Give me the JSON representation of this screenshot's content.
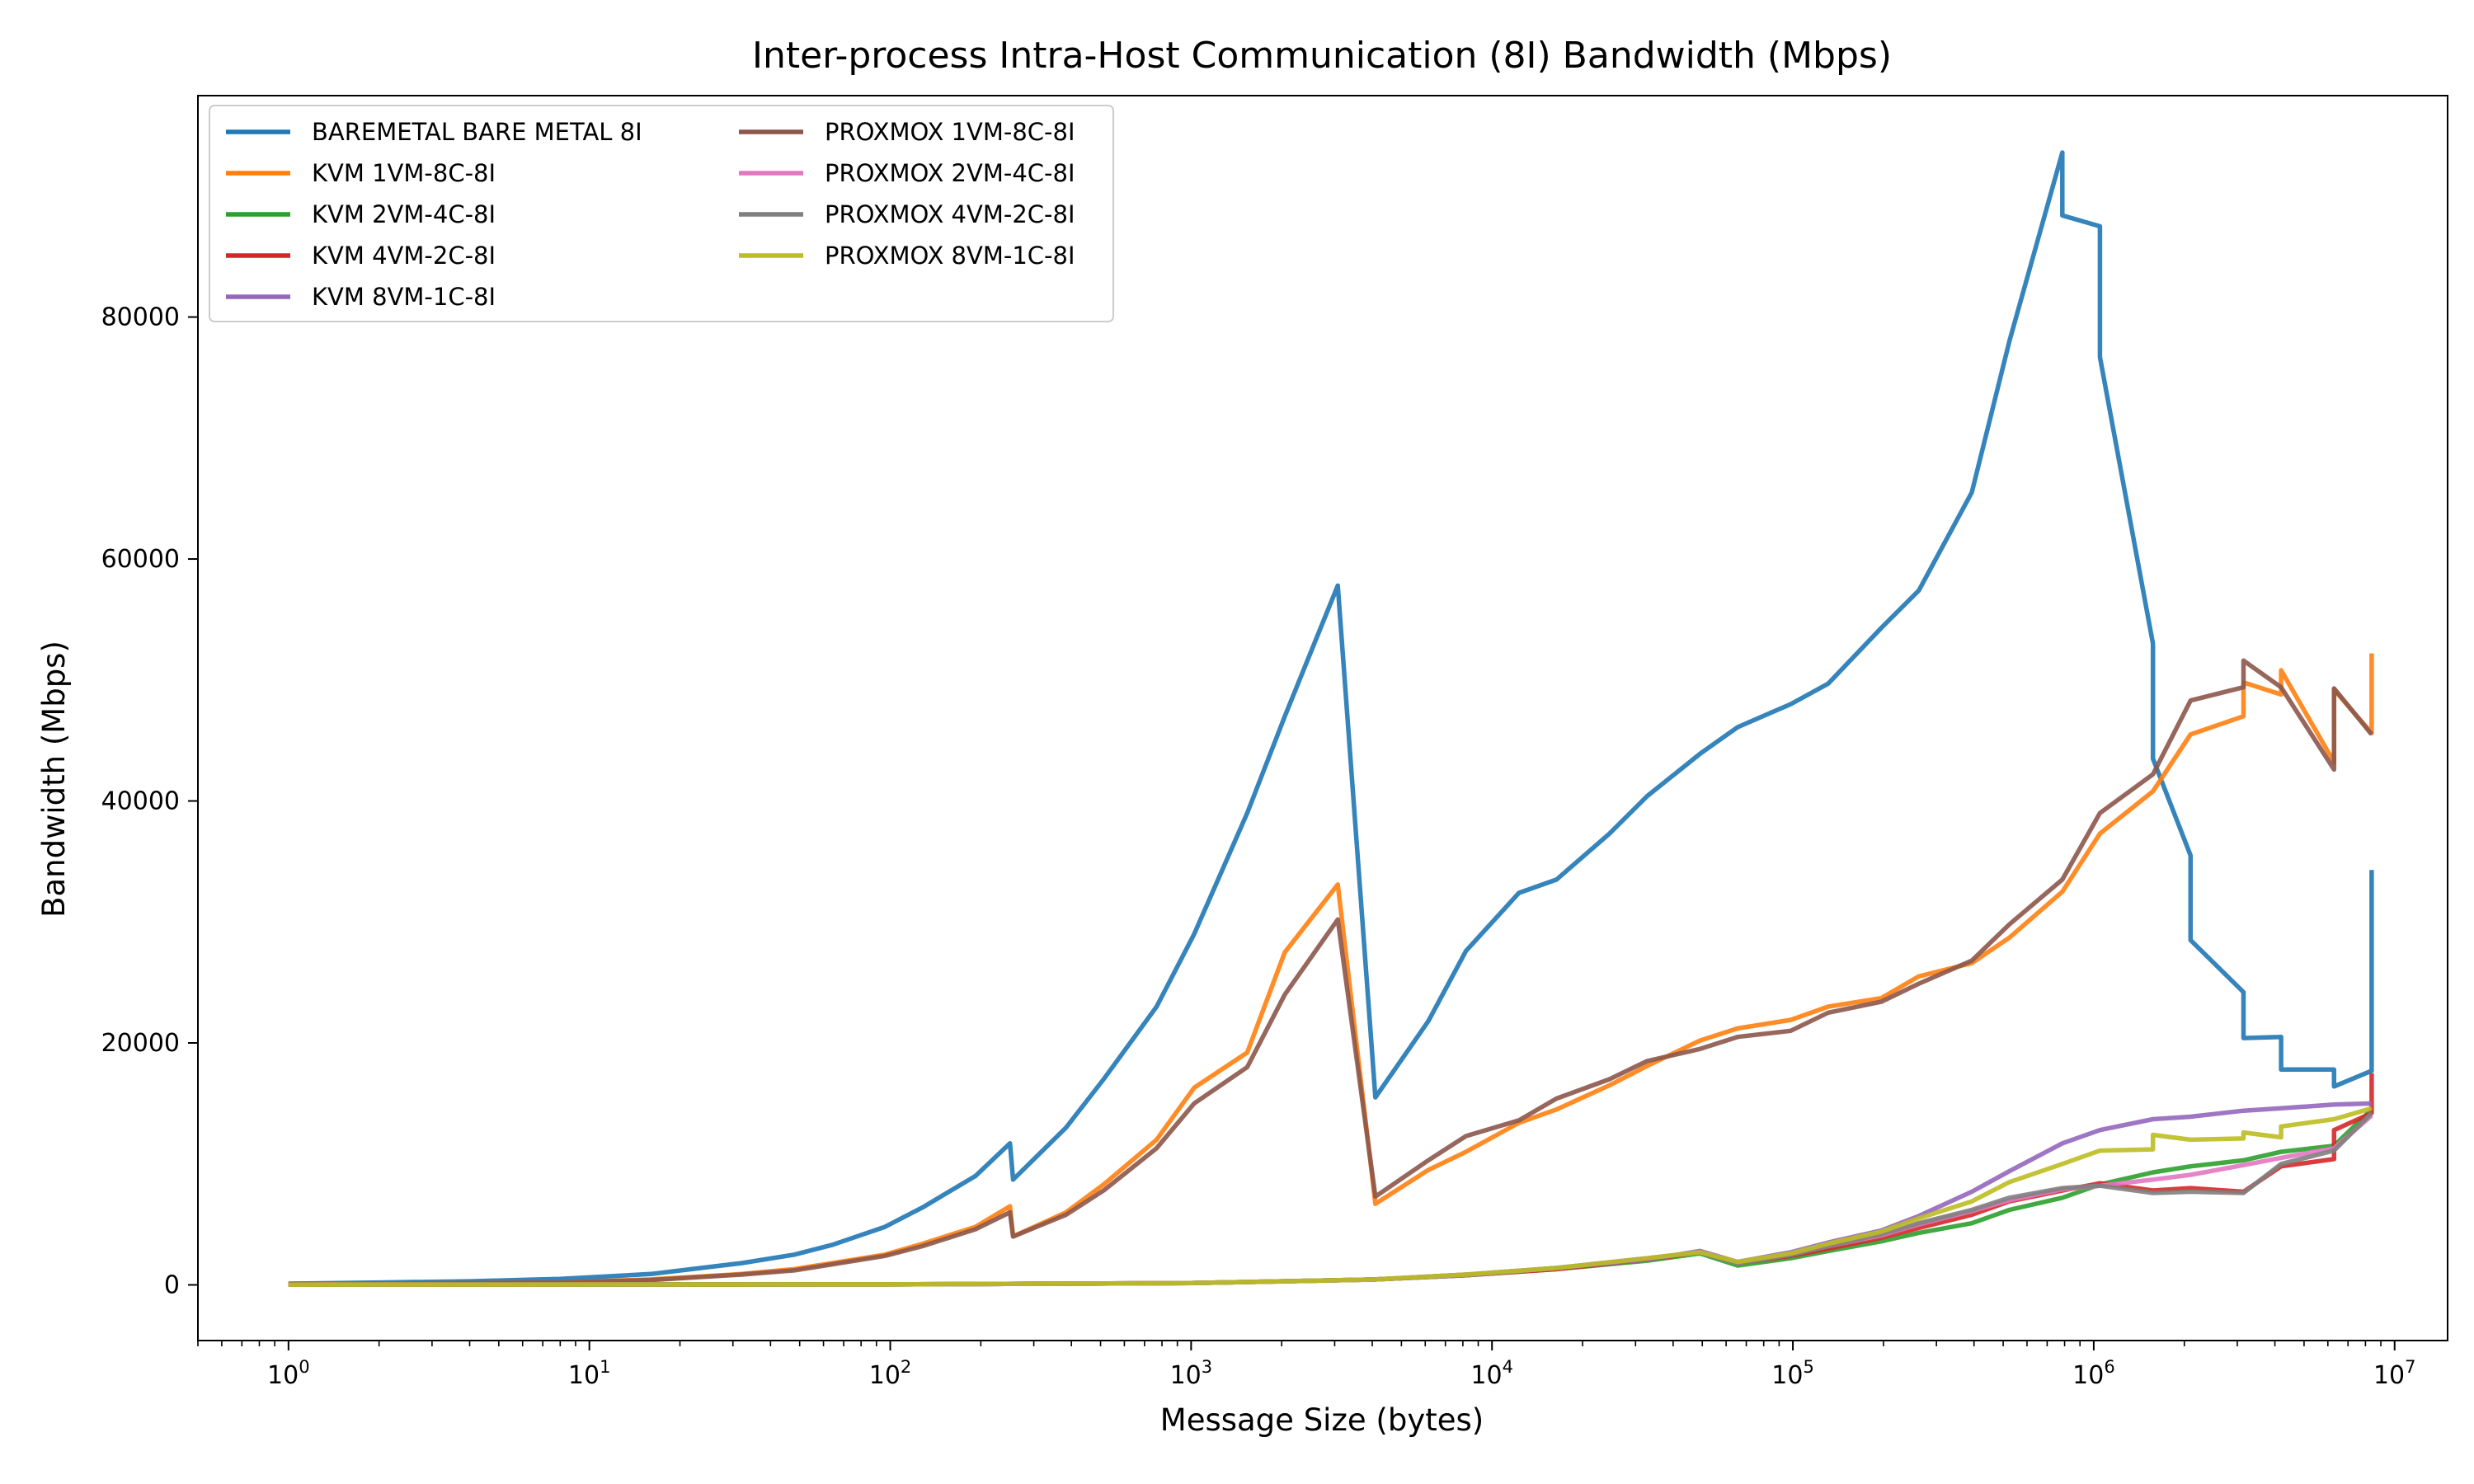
{
  "chart_data": {
    "type": "line",
    "title": "Inter-process Intra-Host Communication (8I) Bandwidth (Mbps)",
    "xlabel": "Message Size (bytes)",
    "ylabel": "Bandwidth (Mbps)",
    "xscale": "log",
    "xlim": [
      0.5,
      15000000
    ],
    "ylim": [
      -4600,
      98300
    ],
    "grid": false,
    "legend_position": "upper-left",
    "legend_columns": 2,
    "x_ticks": [
      {
        "value": 1,
        "base": "10",
        "exp": "0"
      },
      {
        "value": 10,
        "base": "10",
        "exp": "1"
      },
      {
        "value": 100,
        "base": "10",
        "exp": "2"
      },
      {
        "value": 1000,
        "base": "10",
        "exp": "3"
      },
      {
        "value": 10000,
        "base": "10",
        "exp": "4"
      },
      {
        "value": 100000,
        "base": "10",
        "exp": "5"
      },
      {
        "value": 1000000,
        "base": "10",
        "exp": "6"
      },
      {
        "value": 10000000,
        "base": "10",
        "exp": "7"
      }
    ],
    "y_ticks": [
      {
        "value": 0,
        "label": "0"
      },
      {
        "value": 20000,
        "label": "20000"
      },
      {
        "value": 40000,
        "label": "40000"
      },
      {
        "value": 60000,
        "label": "60000"
      },
      {
        "value": 80000,
        "label": "80000"
      }
    ],
    "series": [
      {
        "name": "BAREMETAL BARE METAL 8I",
        "color": "#1f77b4",
        "points": [
          [
            1,
            100
          ],
          [
            2,
            200
          ],
          [
            4,
            300
          ],
          [
            8,
            500
          ],
          [
            16,
            900
          ],
          [
            32,
            1800
          ],
          [
            48,
            2500
          ],
          [
            64,
            3300
          ],
          [
            96,
            4800
          ],
          [
            128,
            6400
          ],
          [
            192,
            9000
          ],
          [
            250,
            11700
          ],
          [
            256,
            8700
          ],
          [
            384,
            13000
          ],
          [
            512,
            17000
          ],
          [
            768,
            23000
          ],
          [
            1024,
            29000
          ],
          [
            1536,
            39000
          ],
          [
            2048,
            47000
          ],
          [
            3072,
            57800
          ],
          [
            4096,
            15500
          ],
          [
            6144,
            21800
          ],
          [
            8192,
            27600
          ],
          [
            12288,
            32400
          ],
          [
            16384,
            33500
          ],
          [
            24576,
            37300
          ],
          [
            32768,
            40400
          ],
          [
            49152,
            43900
          ],
          [
            65536,
            46100
          ],
          [
            98304,
            48000
          ],
          [
            131072,
            49700
          ],
          [
            196608,
            54300
          ],
          [
            262144,
            57400
          ],
          [
            393216,
            65500
          ],
          [
            524288,
            78000
          ],
          [
            786432,
            93600
          ],
          [
            786432,
            88400
          ],
          [
            1048576,
            87500
          ],
          [
            1048576,
            76700
          ],
          [
            1572864,
            53000
          ],
          [
            1572864,
            43500
          ],
          [
            2097152,
            35500
          ],
          [
            2097152,
            28500
          ],
          [
            3145728,
            24200
          ],
          [
            3145728,
            20400
          ],
          [
            4194304,
            20500
          ],
          [
            4194304,
            17800
          ],
          [
            6291456,
            17800
          ],
          [
            6291456,
            16400
          ],
          [
            8388608,
            17700
          ],
          [
            8388608,
            34300
          ]
        ]
      },
      {
        "name": "KVM 1VM-8C-8I",
        "color": "#ff7f0e",
        "points": [
          [
            1,
            50
          ],
          [
            8,
            200
          ],
          [
            16,
            450
          ],
          [
            32,
            900
          ],
          [
            48,
            1300
          ],
          [
            64,
            1800
          ],
          [
            96,
            2500
          ],
          [
            128,
            3400
          ],
          [
            192,
            4800
          ],
          [
            250,
            6500
          ],
          [
            256,
            4000
          ],
          [
            384,
            6000
          ],
          [
            512,
            8300
          ],
          [
            768,
            12000
          ],
          [
            1024,
            16300
          ],
          [
            1536,
            19200
          ],
          [
            2048,
            27500
          ],
          [
            3072,
            33100
          ],
          [
            4096,
            6700
          ],
          [
            6144,
            9500
          ],
          [
            8192,
            11000
          ],
          [
            12288,
            13400
          ],
          [
            16384,
            14500
          ],
          [
            24576,
            16500
          ],
          [
            32768,
            18100
          ],
          [
            49152,
            20200
          ],
          [
            65536,
            21200
          ],
          [
            98304,
            21900
          ],
          [
            131072,
            23000
          ],
          [
            196608,
            23700
          ],
          [
            262144,
            25500
          ],
          [
            393216,
            26600
          ],
          [
            524288,
            28700
          ],
          [
            786432,
            32500
          ],
          [
            1048576,
            37300
          ],
          [
            1572864,
            40800
          ],
          [
            2097152,
            45500
          ],
          [
            3145728,
            47000
          ],
          [
            3145728,
            49800
          ],
          [
            4194304,
            48800
          ],
          [
            4194304,
            50800
          ],
          [
            6291456,
            43200
          ],
          [
            6291456,
            49200
          ],
          [
            8388608,
            45600
          ],
          [
            8388608,
            52200
          ]
        ]
      },
      {
        "name": "KVM 2VM-4C-8I",
        "color": "#2ca02c",
        "points": [
          [
            1,
            20
          ],
          [
            100,
            40
          ],
          [
            1000,
            150
          ],
          [
            4096,
            450
          ],
          [
            8192,
            800
          ],
          [
            16384,
            1300
          ],
          [
            32768,
            2000
          ],
          [
            49152,
            2600
          ],
          [
            65536,
            1600
          ],
          [
            98304,
            2200
          ],
          [
            131072,
            2800
          ],
          [
            196608,
            3600
          ],
          [
            262144,
            4300
          ],
          [
            393216,
            5100
          ],
          [
            524288,
            6200
          ],
          [
            786432,
            7200
          ],
          [
            1048576,
            8300
          ],
          [
            1572864,
            9300
          ],
          [
            2097152,
            9800
          ],
          [
            3145728,
            10300
          ],
          [
            4194304,
            11000
          ],
          [
            6291456,
            11500
          ],
          [
            8388608,
            14500
          ]
        ]
      },
      {
        "name": "KVM 4VM-2C-8I",
        "color": "#d62728",
        "points": [
          [
            1,
            20
          ],
          [
            100,
            40
          ],
          [
            1000,
            150
          ],
          [
            4096,
            450
          ],
          [
            8192,
            800
          ],
          [
            16384,
            1300
          ],
          [
            32768,
            2100
          ],
          [
            49152,
            2700
          ],
          [
            65536,
            1800
          ],
          [
            98304,
            2400
          ],
          [
            131072,
            3000
          ],
          [
            196608,
            3900
          ],
          [
            262144,
            4700
          ],
          [
            393216,
            5800
          ],
          [
            524288,
            6900
          ],
          [
            786432,
            7800
          ],
          [
            1048576,
            8400
          ],
          [
            1572864,
            7800
          ],
          [
            2097152,
            8000
          ],
          [
            3145728,
            7700
          ],
          [
            4194304,
            9800
          ],
          [
            6291456,
            10400
          ],
          [
            6291456,
            12800
          ],
          [
            8388608,
            14200
          ],
          [
            8388608,
            17500
          ]
        ]
      },
      {
        "name": "KVM 8VM-1C-8I",
        "color": "#9467bd",
        "points": [
          [
            1,
            20
          ],
          [
            100,
            40
          ],
          [
            1000,
            150
          ],
          [
            4096,
            450
          ],
          [
            8192,
            800
          ],
          [
            16384,
            1400
          ],
          [
            32768,
            2100
          ],
          [
            49152,
            2800
          ],
          [
            65536,
            1900
          ],
          [
            98304,
            2700
          ],
          [
            131072,
            3500
          ],
          [
            196608,
            4500
          ],
          [
            262144,
            5700
          ],
          [
            393216,
            7700
          ],
          [
            524288,
            9400
          ],
          [
            786432,
            11700
          ],
          [
            1048576,
            12800
          ],
          [
            1572864,
            13700
          ],
          [
            2097152,
            13900
          ],
          [
            3145728,
            14400
          ],
          [
            4194304,
            14600
          ],
          [
            6291456,
            14900
          ],
          [
            8388608,
            15000
          ]
        ]
      },
      {
        "name": "PROXMOX 1VM-8C-8I",
        "color": "#8c564b",
        "points": [
          [
            1,
            50
          ],
          [
            8,
            200
          ],
          [
            16,
            400
          ],
          [
            32,
            850
          ],
          [
            48,
            1200
          ],
          [
            64,
            1700
          ],
          [
            96,
            2400
          ],
          [
            128,
            3200
          ],
          [
            192,
            4600
          ],
          [
            250,
            6000
          ],
          [
            256,
            4000
          ],
          [
            384,
            5800
          ],
          [
            512,
            7800
          ],
          [
            768,
            11300
          ],
          [
            1024,
            15000
          ],
          [
            1536,
            18000
          ],
          [
            2048,
            24000
          ],
          [
            3072,
            30200
          ],
          [
            4096,
            7300
          ],
          [
            6144,
            10300
          ],
          [
            8192,
            12300
          ],
          [
            12288,
            13600
          ],
          [
            16384,
            15400
          ],
          [
            24576,
            17000
          ],
          [
            32768,
            18500
          ],
          [
            49152,
            19500
          ],
          [
            65536,
            20500
          ],
          [
            98304,
            21000
          ],
          [
            131072,
            22500
          ],
          [
            196608,
            23400
          ],
          [
            262144,
            24900
          ],
          [
            393216,
            26800
          ],
          [
            524288,
            29800
          ],
          [
            786432,
            33500
          ],
          [
            1048576,
            39000
          ],
          [
            1572864,
            42200
          ],
          [
            2097152,
            48300
          ],
          [
            3145728,
            49400
          ],
          [
            3145728,
            51600
          ],
          [
            4194304,
            49400
          ],
          [
            6291456,
            42600
          ],
          [
            6291456,
            49300
          ],
          [
            8388608,
            45500
          ]
        ]
      },
      {
        "name": "PROXMOX 2VM-4C-8I",
        "color": "#e377c2",
        "points": [
          [
            1,
            20
          ],
          [
            100,
            40
          ],
          [
            1000,
            150
          ],
          [
            4096,
            450
          ],
          [
            8192,
            850
          ],
          [
            16384,
            1400
          ],
          [
            32768,
            2200
          ],
          [
            49152,
            2700
          ],
          [
            65536,
            1800
          ],
          [
            98304,
            2500
          ],
          [
            131072,
            3200
          ],
          [
            196608,
            4100
          ],
          [
            262144,
            5000
          ],
          [
            393216,
            6100
          ],
          [
            524288,
            7000
          ],
          [
            786432,
            7900
          ],
          [
            1048576,
            8200
          ],
          [
            1572864,
            8700
          ],
          [
            2097152,
            9100
          ],
          [
            3145728,
            9900
          ],
          [
            4194304,
            10500
          ],
          [
            6291456,
            11300
          ],
          [
            8388608,
            14000
          ]
        ]
      },
      {
        "name": "PROXMOX 4VM-2C-8I",
        "color": "#7f7f7f",
        "points": [
          [
            1,
            20
          ],
          [
            100,
            40
          ],
          [
            1000,
            150
          ],
          [
            4096,
            450
          ],
          [
            8192,
            850
          ],
          [
            16384,
            1400
          ],
          [
            32768,
            2200
          ],
          [
            49152,
            2700
          ],
          [
            65536,
            1800
          ],
          [
            98304,
            2500
          ],
          [
            131072,
            3200
          ],
          [
            196608,
            4200
          ],
          [
            262144,
            5100
          ],
          [
            393216,
            6200
          ],
          [
            524288,
            7200
          ],
          [
            786432,
            8000
          ],
          [
            1048576,
            8200
          ],
          [
            1572864,
            7600
          ],
          [
            2097152,
            7700
          ],
          [
            3145728,
            7600
          ],
          [
            4194304,
            10000
          ],
          [
            6291456,
            11100
          ],
          [
            8388608,
            14200
          ]
        ]
      },
      {
        "name": "PROXMOX 8VM-1C-8I",
        "color": "#bcbd22",
        "points": [
          [
            1,
            20
          ],
          [
            100,
            40
          ],
          [
            1000,
            150
          ],
          [
            4096,
            450
          ],
          [
            8192,
            850
          ],
          [
            16384,
            1400
          ],
          [
            32768,
            2200
          ],
          [
            49152,
            2700
          ],
          [
            65536,
            1900
          ],
          [
            98304,
            2600
          ],
          [
            131072,
            3400
          ],
          [
            196608,
            4400
          ],
          [
            262144,
            5500
          ],
          [
            393216,
            6900
          ],
          [
            524288,
            8500
          ],
          [
            786432,
            10000
          ],
          [
            1048576,
            11100
          ],
          [
            1572864,
            11200
          ],
          [
            1572864,
            12400
          ],
          [
            2097152,
            12000
          ],
          [
            3145728,
            12100
          ],
          [
            3145728,
            12600
          ],
          [
            4194304,
            12200
          ],
          [
            4194304,
            13100
          ],
          [
            6291456,
            13700
          ],
          [
            8388608,
            14600
          ]
        ]
      }
    ]
  }
}
